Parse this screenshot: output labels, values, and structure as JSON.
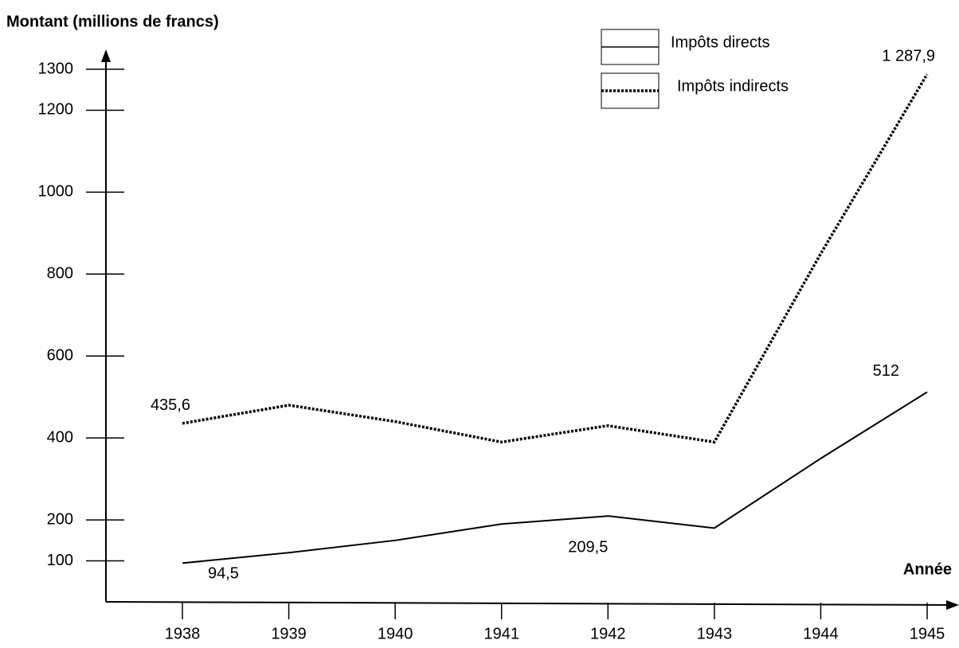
{
  "chart_data": {
    "type": "line",
    "y_label": "Montant (millions de francs)",
    "x_label": "Année",
    "categories": [
      "1938",
      "1939",
      "1940",
      "1941",
      "1942",
      "1943",
      "1944",
      "1945"
    ],
    "series": [
      {
        "name": "Impôts directs",
        "color": "#000000",
        "dash": "solid",
        "values": [
          94.5,
          120,
          150,
          190,
          209.5,
          180,
          350,
          512
        ],
        "value_labels": [
          "94,5",
          null,
          null,
          null,
          "209,5",
          null,
          null,
          "512"
        ]
      },
      {
        "name": "Impôts indirects",
        "color": "#000000",
        "dash": "dotted",
        "values": [
          435.6,
          480,
          440,
          390,
          430,
          390,
          850,
          1287.9
        ],
        "value_labels": [
          "435,6",
          null,
          null,
          null,
          null,
          null,
          null,
          "1 287,9"
        ]
      }
    ],
    "ylim": [
      0,
      1300
    ],
    "yticks": [
      100,
      200,
      400,
      600,
      800,
      1000,
      1200,
      1300
    ],
    "legend": "top-right"
  }
}
